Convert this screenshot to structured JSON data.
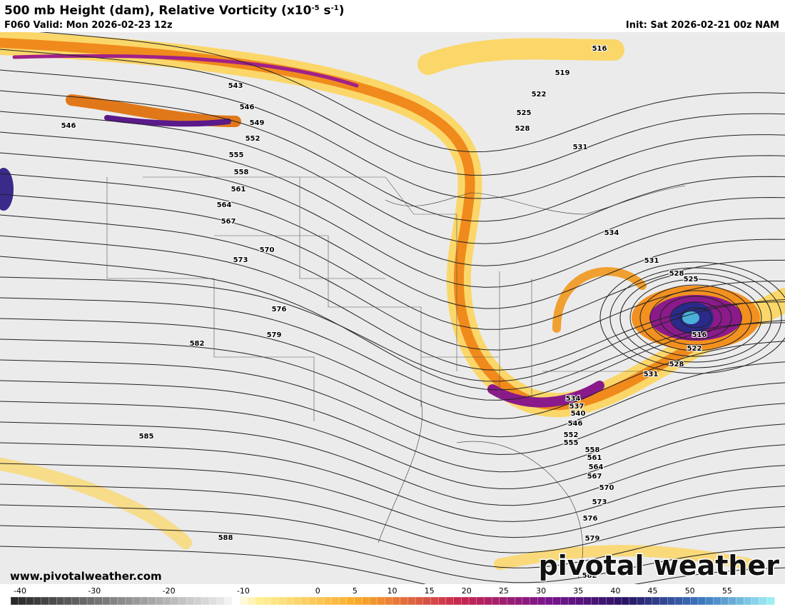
{
  "header": {
    "title": [
      "500 mb Height (dam), Relative Vorticity (x10",
      "-5",
      " s",
      "-1",
      ")"
    ],
    "valid": "F060 Valid: Mon 2026-02-23 12z",
    "init": "Init: Sat 2026-02-21 00z NAM"
  },
  "contour_labels": [
    "516",
    "519",
    "522",
    "525",
    "528",
    "531",
    "543",
    "546",
    "549",
    "552",
    "555",
    "558",
    "561",
    "564",
    "567",
    "570",
    "573",
    "576",
    "579",
    "582",
    "546",
    "585",
    "588",
    "534",
    "531",
    "528",
    "525",
    "516",
    "522",
    "528",
    "531",
    "534",
    "537",
    "540",
    "546",
    "552",
    "555",
    "558",
    "561",
    "564",
    "567",
    "570",
    "573",
    "576",
    "579",
    "582"
  ],
  "website": "www.pivotalweather.com",
  "watermark": "pivotal weather",
  "colorbar_labels": [
    "-40",
    "-30",
    "-20",
    "-10",
    "0",
    "5",
    "10",
    "15",
    "20",
    "25",
    "30",
    "35",
    "40",
    "45",
    "50",
    "55"
  ]
}
